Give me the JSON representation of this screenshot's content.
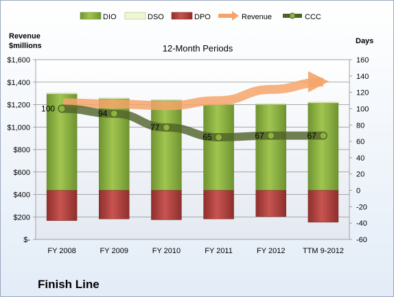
{
  "chart_data": {
    "type": "bar",
    "title": "12-Month Periods",
    "company": "Finish Line",
    "left_axis_label": [
      "Revenue",
      "$millions"
    ],
    "right_axis_label": "Days",
    "categories": [
      "FY 2008",
      "FY 2009",
      "FY 2010",
      "FY 2011",
      "FY 2012",
      "TTM 9-2012"
    ],
    "left_ylim": [
      0,
      1600
    ],
    "left_ticks": [
      0,
      200,
      400,
      600,
      800,
      1000,
      1200,
      1400,
      1600
    ],
    "left_tick_labels": [
      "$-",
      "$200",
      "$400",
      "$600",
      "$800",
      "$1,000",
      "$1,200",
      "$1,400",
      "$1,600"
    ],
    "right_ylim": [
      -60,
      160
    ],
    "right_ticks": [
      -60,
      -40,
      -20,
      0,
      20,
      40,
      60,
      80,
      100,
      120,
      140,
      160
    ],
    "grid": true,
    "legend_position": "top",
    "series": [
      {
        "name": "DIO",
        "type": "stacked-bar",
        "axis": "right",
        "color": "#8db43c",
        "values": [
          118,
          112,
          110,
          105,
          105,
          107
        ]
      },
      {
        "name": "DSO",
        "type": "stacked-bar",
        "axis": "right",
        "color": "#eef6d8",
        "values": [
          1,
          1,
          1,
          1,
          1,
          1
        ]
      },
      {
        "name": "DPO",
        "type": "stacked-bar-negative",
        "axis": "right",
        "color": "#c0504d",
        "values": [
          -37,
          -35,
          -36,
          -35,
          -32,
          -39
        ]
      },
      {
        "name": "Revenue",
        "type": "arrow",
        "axis": "left",
        "color": "#f4a56a",
        "values": [
          1215,
          1205,
          1190,
          1235,
          1335,
          1400
        ]
      },
      {
        "name": "CCC",
        "type": "line",
        "axis": "right",
        "color": "#4f6228",
        "values": [
          100,
          94,
          77,
          65,
          67,
          67
        ],
        "labels": [
          "100",
          "94",
          "77",
          "65",
          "67",
          "67"
        ]
      }
    ]
  }
}
